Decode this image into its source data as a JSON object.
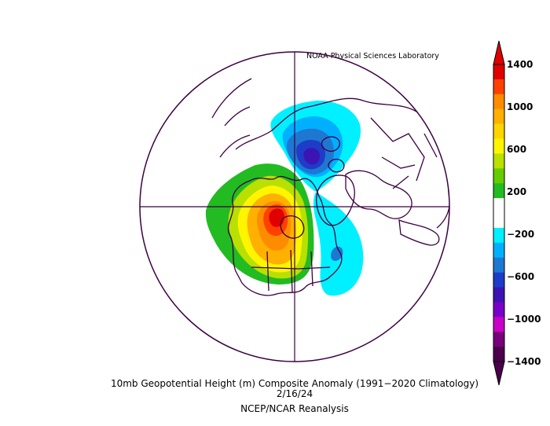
{
  "credit": "NOAA Physical Sciences Laboratory",
  "title": "10mb Geopotential Height (m) Composite Anomaly (1991−2020 Climatology)",
  "date": "2/16/24",
  "source": "NCEP/NCAR Reanalysis",
  "colorbar": {
    "labels": [
      "1400",
      "1000",
      "600",
      "200",
      "−200",
      "−600",
      "−1000",
      "−1400"
    ],
    "colors": [
      "#e00000",
      "#ff4000",
      "#ff8c00",
      "#ffb000",
      "#ffd500",
      "#fff500",
      "#b8e000",
      "#66cc00",
      "#22bb22",
      "#ffffff",
      "#ffffff",
      "#00f0ff",
      "#00b0ff",
      "#1e78d2",
      "#1e3cc8",
      "#3c14b4",
      "#7800c8",
      "#c800c8",
      "#780078",
      "#4b004b"
    ]
  }
}
